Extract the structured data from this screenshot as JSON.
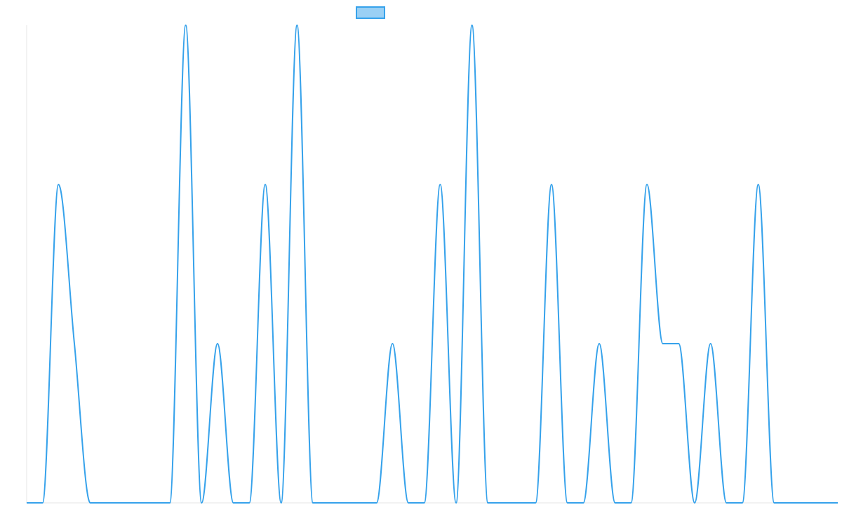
{
  "chart_data": {
    "type": "line",
    "title": "",
    "xlabel": "",
    "ylabel": "",
    "x": [
      0,
      1,
      2,
      3,
      4,
      5,
      6,
      7,
      8,
      9,
      10,
      11,
      12,
      13,
      14,
      15,
      16,
      17,
      18,
      19,
      20,
      21,
      22,
      23,
      24,
      25,
      26,
      27,
      28,
      29,
      30,
      31,
      32,
      33,
      34,
      35,
      36,
      37,
      38,
      39,
      40,
      41,
      42,
      43,
      44,
      45,
      46,
      47,
      48,
      49,
      50,
      51
    ],
    "xlim": [
      0,
      51
    ],
    "ylim": [
      0,
      3
    ],
    "grid": false,
    "legend": "top-center",
    "series": [
      {
        "color": "#36a2eb",
        "fill": "#9ad0f5",
        "values": [
          0,
          0,
          2,
          1,
          0,
          0,
          0,
          0,
          0,
          0,
          3,
          0,
          1,
          0,
          0,
          2,
          0,
          3,
          0,
          0,
          0,
          0,
          0,
          1,
          0,
          0,
          2,
          0,
          3,
          0,
          0,
          0,
          0,
          2,
          0,
          0,
          1,
          0,
          0,
          2,
          1,
          1,
          0,
          1,
          0,
          0,
          2,
          0,
          0,
          0,
          0,
          0
        ]
      }
    ]
  },
  "colors": {
    "axis": "#e6e6e6",
    "background": "#ffffff"
  }
}
